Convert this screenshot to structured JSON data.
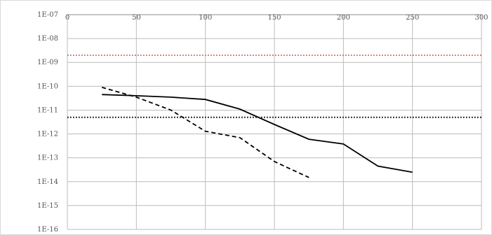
{
  "chart_data": {
    "type": "line",
    "title": "",
    "xlabel": "",
    "ylabel": "",
    "xlim": [
      0,
      300
    ],
    "ylim": [
      1e-16,
      1e-07
    ],
    "y_scale": "log",
    "x_axis_position": "top",
    "grid": true,
    "x_ticks": [
      0,
      50,
      100,
      150,
      200,
      250,
      300
    ],
    "x_tick_labels": [
      "0",
      "50",
      "100",
      "150",
      "200",
      "250",
      "300"
    ],
    "y_ticks": [
      1e-07,
      1e-08,
      1e-09,
      1e-10,
      1e-11,
      1e-12,
      1e-13,
      1e-14,
      1e-15,
      1e-16
    ],
    "y_tick_labels": [
      "1E-07",
      "1E-08",
      "1E-09",
      "1E-10",
      "1E-11",
      "1E-12",
      "1E-13",
      "1E-14",
      "1E-15",
      "1E-16"
    ],
    "series": [
      {
        "style": "solid",
        "color": "#000000",
        "x": [
          25,
          50,
          75,
          100,
          125,
          150,
          175,
          200,
          225,
          250
        ],
        "y": [
          4.5e-11,
          4e-11,
          3.5e-11,
          2.8e-11,
          1.1e-11,
          2.5e-12,
          6e-13,
          3.8e-13,
          4.5e-14,
          2.5e-14
        ]
      },
      {
        "style": "dashed",
        "color": "#000000",
        "x": [
          25,
          50,
          75,
          100,
          125,
          150,
          175
        ],
        "y": [
          9e-11,
          3.5e-11,
          1e-11,
          1.3e-12,
          7e-13,
          7e-14,
          1.5e-14
        ]
      },
      {
        "style": "dotted",
        "color": "#e06060",
        "x": [
          0,
          300
        ],
        "y": [
          2e-09,
          2e-09
        ]
      },
      {
        "style": "dotted",
        "color": "#000000",
        "x": [
          0,
          300
        ],
        "y": [
          5e-12,
          5e-12
        ]
      }
    ]
  }
}
